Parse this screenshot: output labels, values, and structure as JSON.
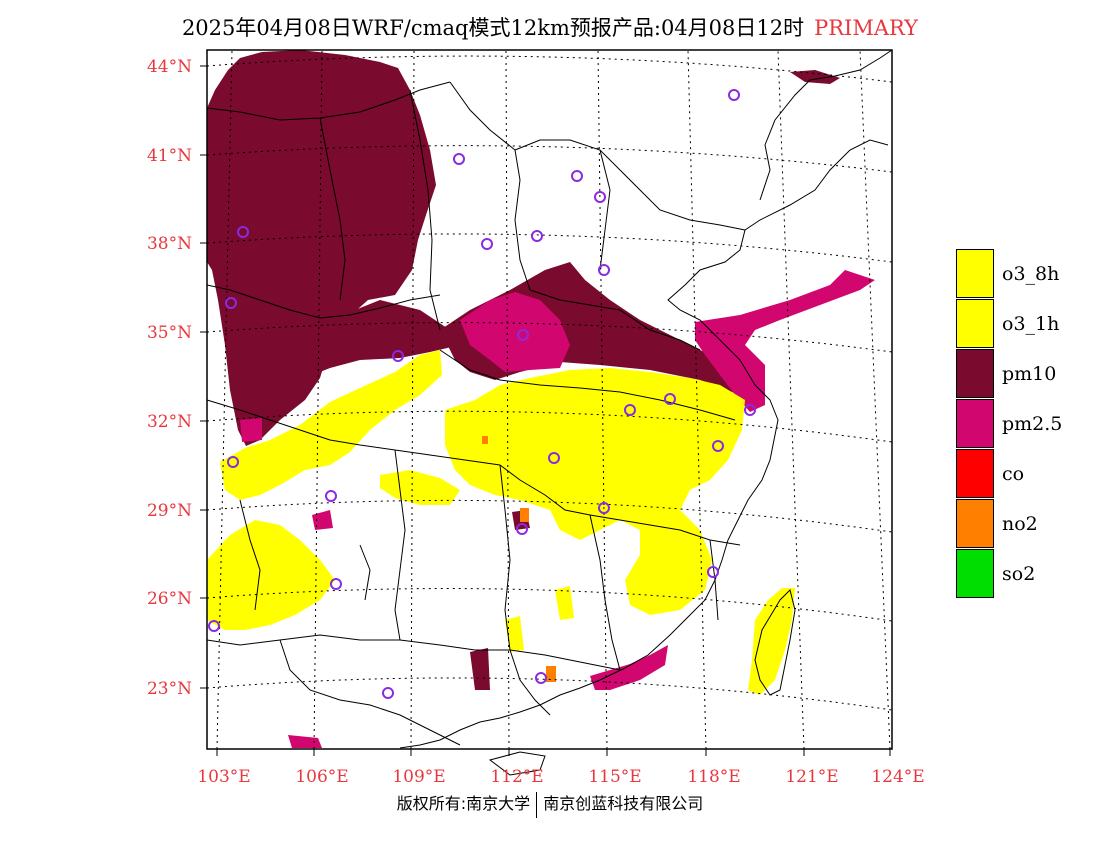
{
  "title": {
    "main": "2025年04月08日WRF/cmaq模式12km预报产品:04月08日12时",
    "tag": "PRIMARY"
  },
  "lat_labels": [
    "44°N",
    "41°N",
    "38°N",
    "35°N",
    "32°N",
    "29°N",
    "26°N",
    "23°N"
  ],
  "lon_labels": [
    "103°E",
    "106°E",
    "109°E",
    "112°E",
    "115°E",
    "118°E",
    "121°E",
    "124°E"
  ],
  "legend": [
    {
      "label": "o3_8h",
      "color": "#ffff00"
    },
    {
      "label": "o3_1h",
      "color": "#ffff00"
    },
    {
      "label": "pm10",
      "color": "#7a0a2e"
    },
    {
      "label": "pm2.5",
      "color": "#d1066f"
    },
    {
      "label": "co",
      "color": "#ff0000"
    },
    {
      "label": "no2",
      "color": "#ff7f00"
    },
    {
      "label": "so2",
      "color": "#00dd00"
    }
  ],
  "colors": {
    "o3": "#ffff00",
    "pm10": "#7a0a2e",
    "pm25": "#d1066f",
    "no2": "#ff7f00",
    "station": "#8a2be2",
    "axis_label": "#e8383d"
  },
  "footer": {
    "left": "版权所有:南京大学",
    "right": "南京创蓝科技有限公司"
  }
}
